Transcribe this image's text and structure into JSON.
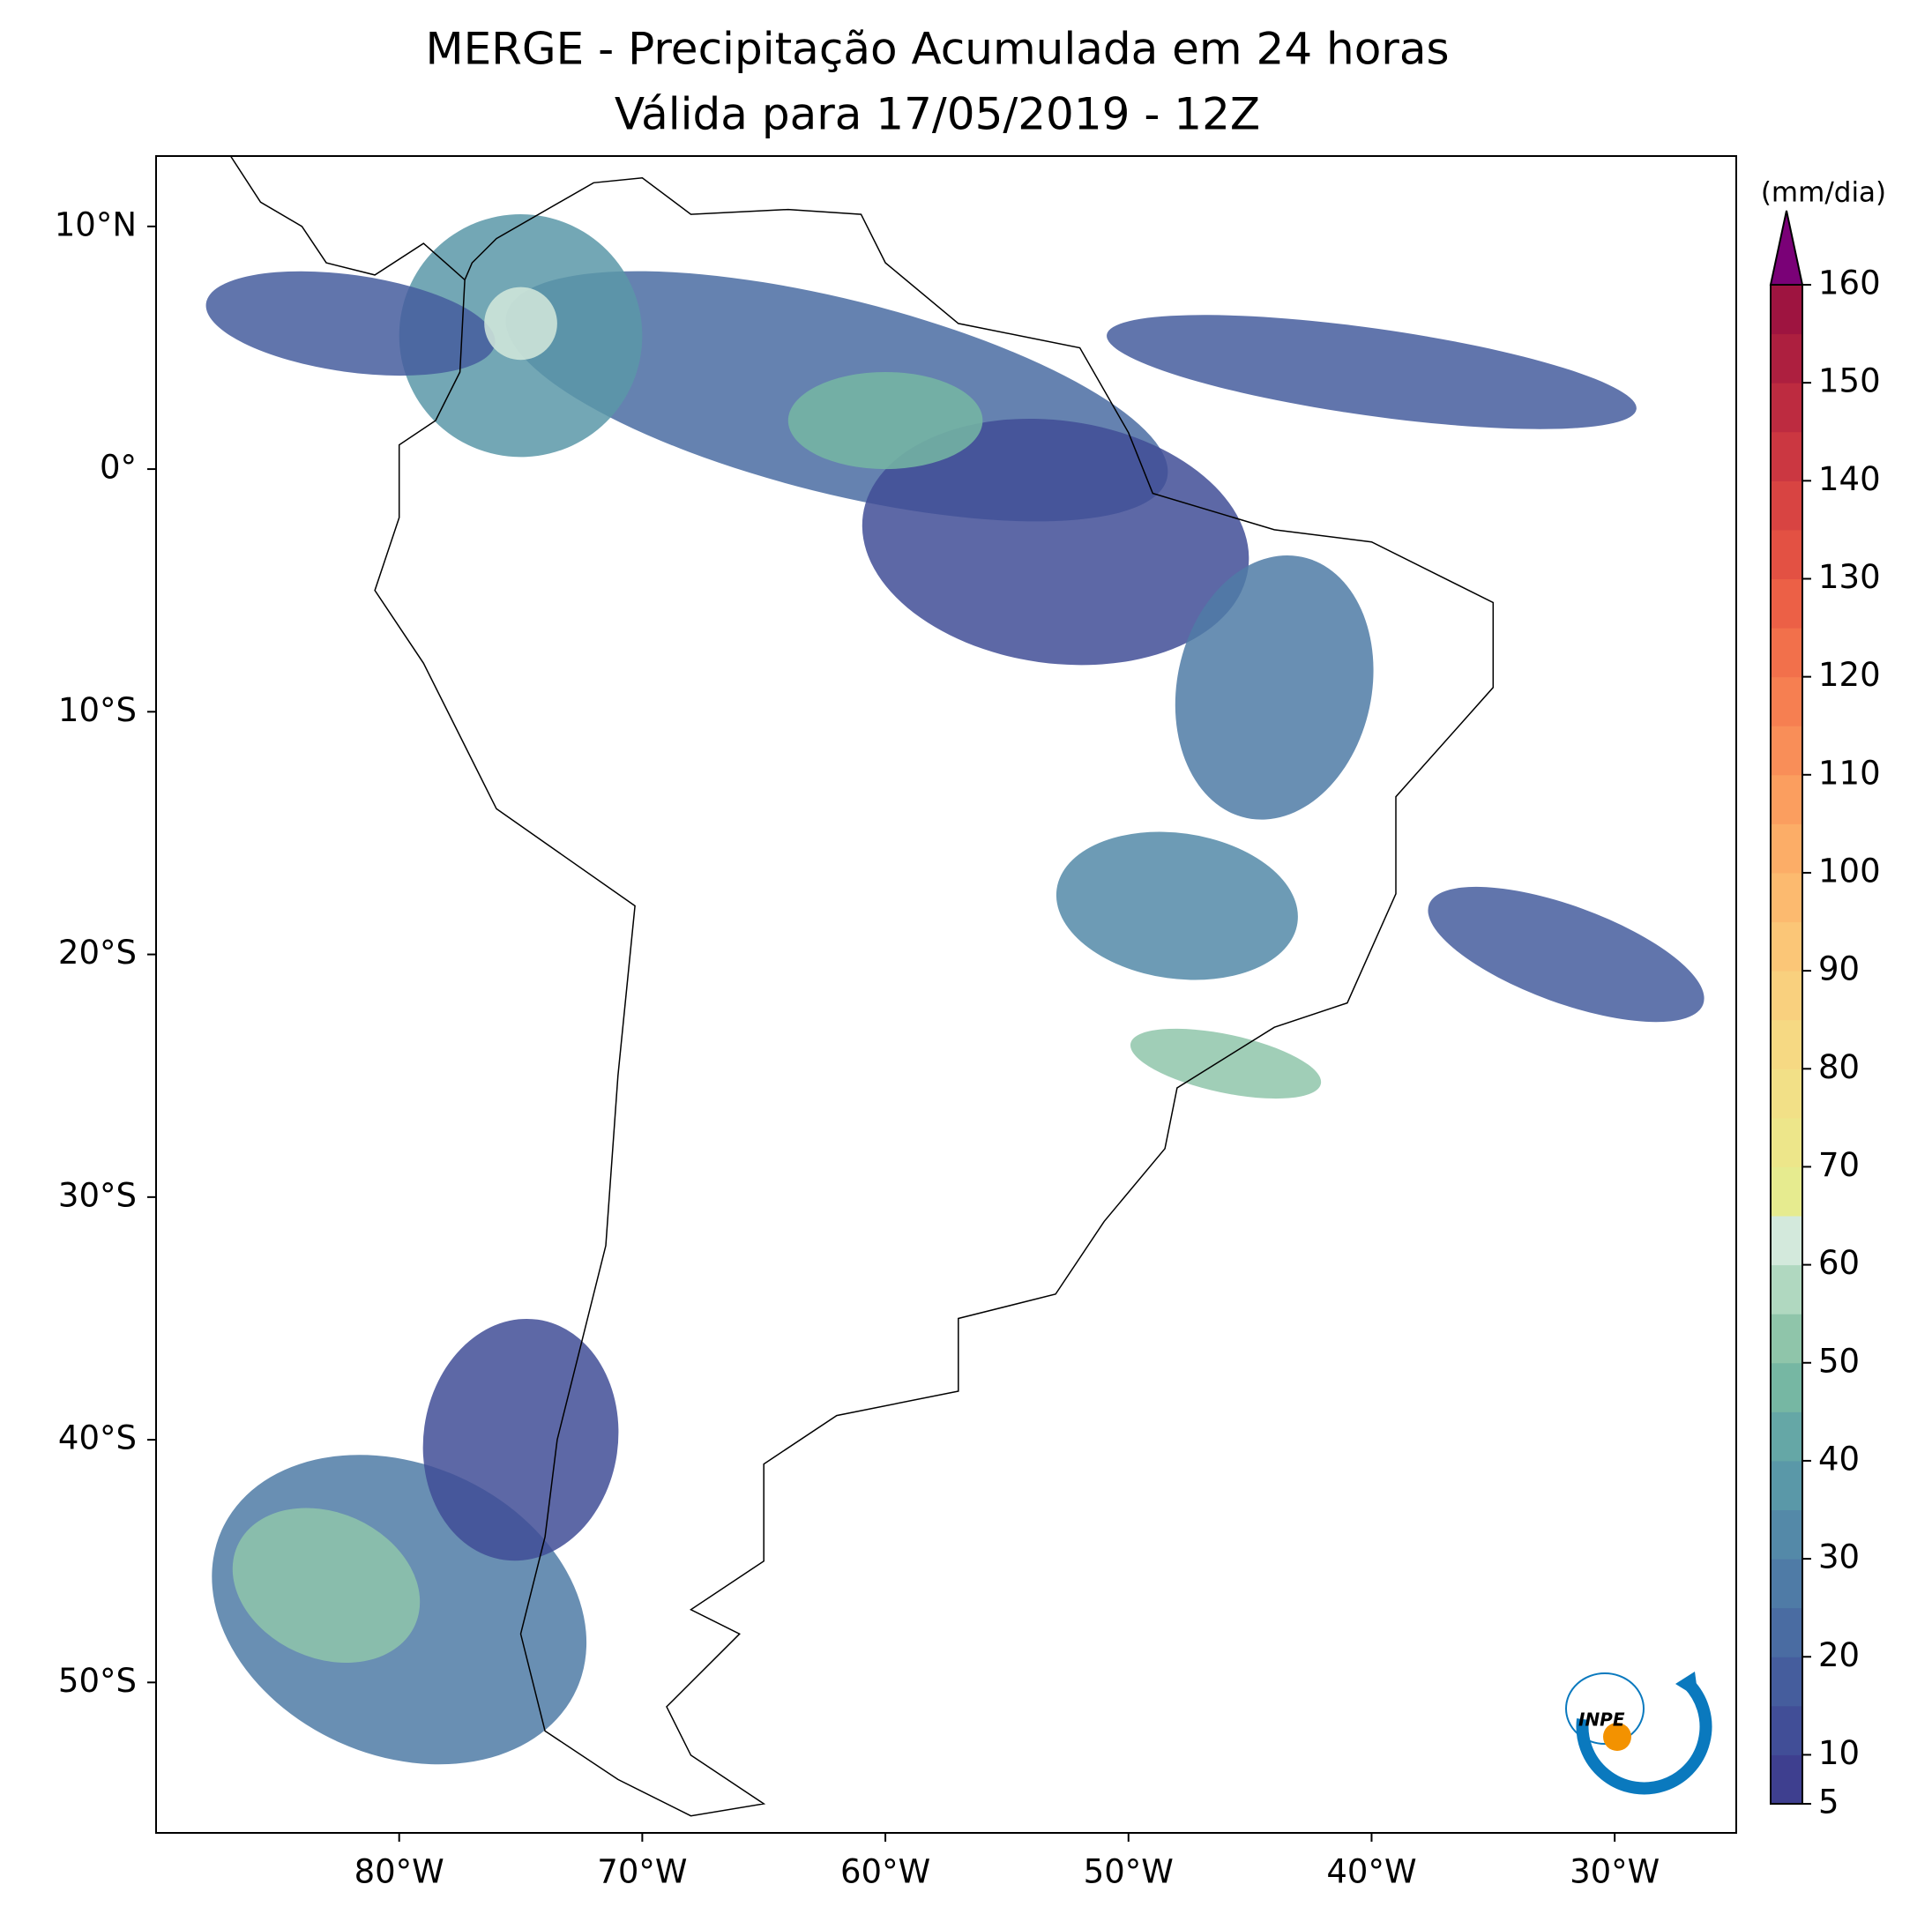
{
  "map": {
    "title": "MERGE - Precipitação Acumulada em 24 horas",
    "subtitle": "Válida para 17/05/2019 - 12Z",
    "xlim": [
      -90,
      -25
    ],
    "ylim": [
      -56.2,
      12.9
    ],
    "xticks": [
      {
        "value": -80,
        "label": "80°W"
      },
      {
        "value": -70,
        "label": "70°W"
      },
      {
        "value": -60,
        "label": "60°W"
      },
      {
        "value": -50,
        "label": "50°W"
      },
      {
        "value": -40,
        "label": "40°W"
      },
      {
        "value": -30,
        "label": "30°W"
      }
    ],
    "yticks": [
      {
        "value": 10,
        "label": "10°N"
      },
      {
        "value": 0,
        "label": "0°"
      },
      {
        "value": -10,
        "label": "10°S"
      },
      {
        "value": -20,
        "label": "20°S"
      },
      {
        "value": -30,
        "label": "30°S"
      },
      {
        "value": -40,
        "label": "40°S"
      },
      {
        "value": -50,
        "label": "50°S"
      }
    ]
  },
  "colorbar": {
    "label": "(mm/dia)",
    "lim": [
      5,
      160
    ],
    "ticks": [
      5,
      10,
      20,
      30,
      40,
      50,
      60,
      70,
      80,
      90,
      100,
      110,
      120,
      130,
      140,
      150,
      160
    ],
    "levels": [
      5,
      10,
      15,
      20,
      25,
      30,
      35,
      40,
      45,
      50,
      55,
      60,
      65,
      70,
      75,
      80,
      85,
      90,
      95,
      100,
      105,
      110,
      115,
      120,
      125,
      130,
      135,
      140,
      145,
      150,
      155,
      160
    ],
    "colors": [
      "#3e3f8f",
      "#414e97",
      "#455d9d",
      "#4a6ca2",
      "#4f7ba6",
      "#5489a8",
      "#5a98a8",
      "#65a7a6",
      "#76b7a3",
      "#8fc5aa",
      "#b0d8c0",
      "#d3e9dc",
      "#e6eb8f",
      "#ede68a",
      "#f2e087",
      "#f6d983",
      "#f9d07e",
      "#fbc677",
      "#fcba6f",
      "#fcad67",
      "#fb9e5f",
      "#f98e58",
      "#f67f51",
      "#f2704b",
      "#ec6046",
      "#e35143",
      "#d84442",
      "#cb3741",
      "#bd2b40",
      "#ad1f3f",
      "#9e1440"
    ],
    "extend_color": "#7a0177"
  },
  "logo": "INPE"
}
